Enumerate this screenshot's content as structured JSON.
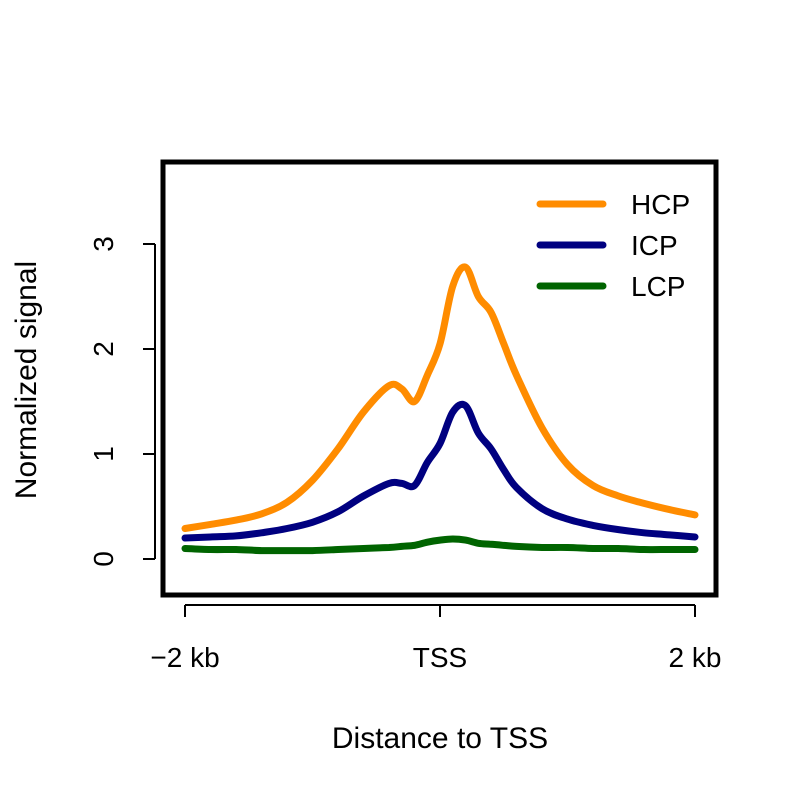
{
  "chart_data": {
    "type": "line",
    "title": "",
    "xlabel": "Distance to TSS",
    "ylabel": "Normalized signal",
    "xlim": [
      -2,
      2
    ],
    "ylim": [
      -0.35,
      3.75
    ],
    "x_ticks": [
      {
        "value": -2,
        "label": "−2 kb"
      },
      {
        "value": 0,
        "label": "TSS"
      },
      {
        "value": 2,
        "label": "2 kb"
      }
    ],
    "y_ticks": [
      {
        "value": 0,
        "label": "0"
      },
      {
        "value": 1,
        "label": "1"
      },
      {
        "value": 2,
        "label": "2"
      },
      {
        "value": 3,
        "label": "3"
      }
    ],
    "grid": false,
    "legend_position": "top-right",
    "x": [
      -2.0,
      -1.8,
      -1.6,
      -1.4,
      -1.2,
      -1.0,
      -0.8,
      -0.6,
      -0.4,
      -0.3,
      -0.2,
      -0.1,
      0.0,
      0.1,
      0.2,
      0.3,
      0.4,
      0.5,
      0.6,
      0.8,
      1.0,
      1.2,
      1.4,
      1.6,
      1.8,
      2.0
    ],
    "series": [
      {
        "name": "HCP",
        "color": "#FF8C00",
        "values": [
          0.29,
          0.33,
          0.37,
          0.43,
          0.54,
          0.75,
          1.05,
          1.4,
          1.65,
          1.62,
          1.5,
          1.75,
          2.05,
          2.6,
          2.78,
          2.5,
          2.35,
          2.05,
          1.75,
          1.25,
          0.9,
          0.7,
          0.6,
          0.53,
          0.47,
          0.42
        ]
      },
      {
        "name": "ICP",
        "color": "#000080",
        "values": [
          0.2,
          0.21,
          0.22,
          0.25,
          0.29,
          0.35,
          0.45,
          0.6,
          0.72,
          0.72,
          0.7,
          0.92,
          1.1,
          1.4,
          1.46,
          1.2,
          1.05,
          0.85,
          0.68,
          0.48,
          0.38,
          0.32,
          0.28,
          0.25,
          0.23,
          0.21
        ]
      },
      {
        "name": "LCP",
        "color": "#006400",
        "values": [
          0.1,
          0.09,
          0.09,
          0.08,
          0.08,
          0.08,
          0.09,
          0.1,
          0.11,
          0.12,
          0.13,
          0.16,
          0.18,
          0.19,
          0.18,
          0.15,
          0.14,
          0.13,
          0.12,
          0.11,
          0.11,
          0.1,
          0.1,
          0.09,
          0.09,
          0.09
        ]
      }
    ]
  }
}
